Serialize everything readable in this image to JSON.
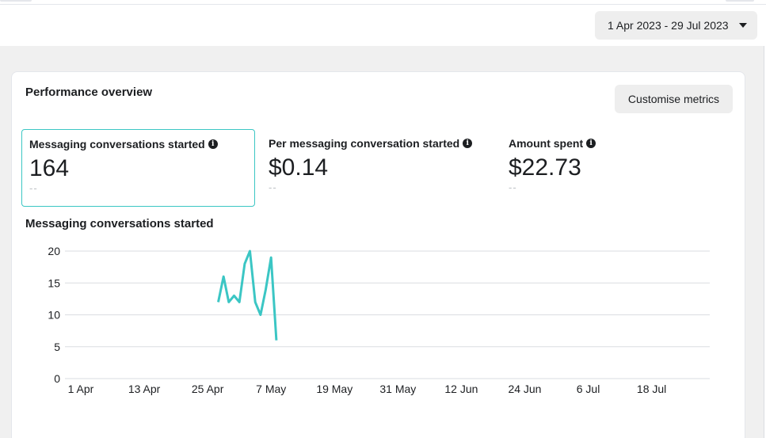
{
  "date_range": {
    "label": "1 Apr 2023 - 29 Jul 2023"
  },
  "overview": {
    "title": "Performance overview",
    "customise_label": "Customise metrics",
    "metrics": [
      {
        "label": "Messaging conversations started",
        "value": "164",
        "comparison": "--",
        "selected": true
      },
      {
        "label": "Per messaging conversation started",
        "value": "$0.14",
        "comparison": "--",
        "selected": false
      },
      {
        "label": "Amount spent",
        "value": "$22.73",
        "comparison": "--",
        "selected": false
      }
    ]
  },
  "chart_data": {
    "type": "line",
    "title": "Messaging conversations started",
    "color": "#3bc6c4",
    "x_ticks": [
      "1 Apr",
      "13 Apr",
      "25 Apr",
      "7 May",
      "19 May",
      "31 May",
      "12 Jun",
      "24 Jun",
      "6 Jul",
      "18 Jul"
    ],
    "y_ticks": [
      0,
      5,
      10,
      15,
      20
    ],
    "ylim": [
      0,
      20
    ],
    "xlim": [
      "2023-03-29",
      "2023-07-29"
    ],
    "series": [
      {
        "x": [
          "2023-04-27",
          "2023-04-28",
          "2023-04-29",
          "2023-04-30",
          "2023-05-01",
          "2023-05-02",
          "2023-05-03",
          "2023-05-04",
          "2023-05-05",
          "2023-05-06",
          "2023-05-07",
          "2023-05-08"
        ],
        "values": [
          12,
          16,
          12,
          13,
          12,
          18,
          20,
          12,
          10,
          14,
          19,
          6
        ]
      }
    ],
    "grid": true
  }
}
